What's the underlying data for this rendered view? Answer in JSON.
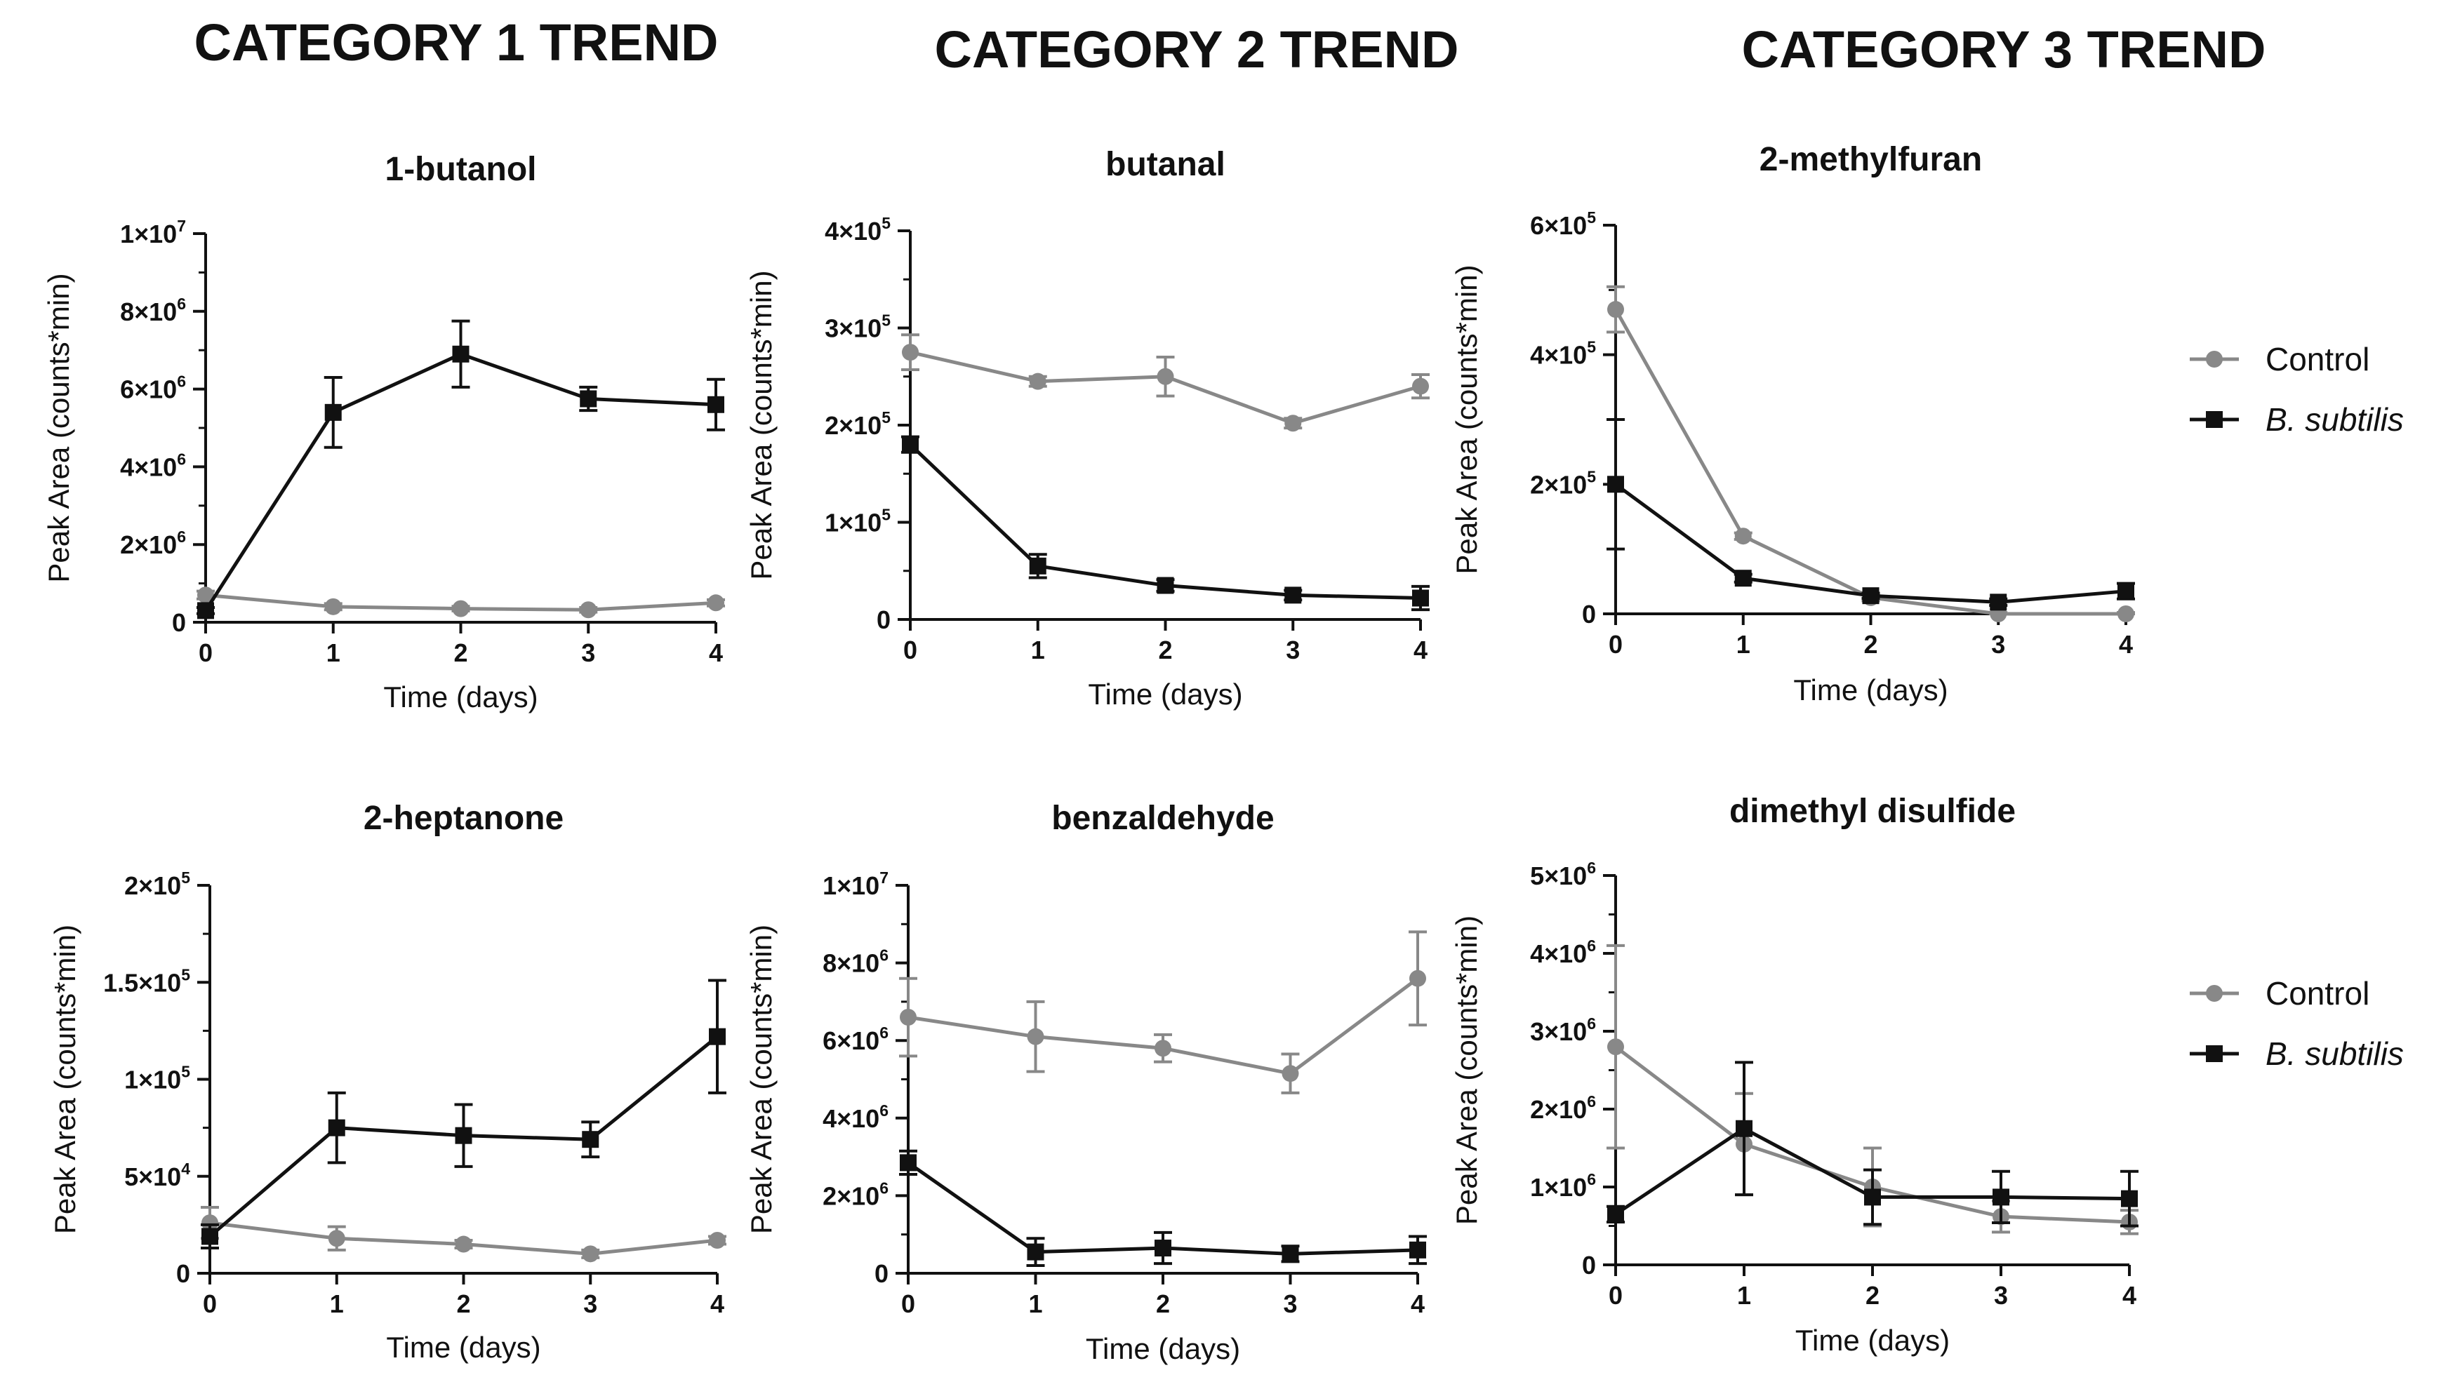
{
  "categories": [
    {
      "title": "CATEGORY 1 TREND"
    },
    {
      "title": "CATEGORY 2 TREND"
    },
    {
      "title": "CATEGORY 3 TREND"
    }
  ],
  "colors": {
    "control": "#888888",
    "subtilis": "#111111"
  },
  "legends": [
    {
      "items": [
        {
          "label": "Control",
          "series": "control"
        },
        {
          "label": "B. subtilis",
          "series": "subtilis",
          "italic": true
        }
      ]
    },
    {
      "items": [
        {
          "label": "Control",
          "series": "control"
        },
        {
          "label": "B. subtilis",
          "series": "subtilis",
          "italic": true
        }
      ]
    }
  ],
  "chart_data": [
    {
      "type": "line",
      "title": "1-butanol",
      "xlabel": "Time (days)",
      "ylabel": "Peak  Area (counts*min)",
      "x": [
        0,
        1,
        2,
        3,
        4
      ],
      "xticks": [
        "0",
        "1",
        "2",
        "3",
        "4"
      ],
      "xlim": [
        0,
        4
      ],
      "ylim": [
        0,
        10000000
      ],
      "yticks": [
        {
          "value": 0,
          "label": "0"
        },
        {
          "value": 2000000,
          "mant": "2",
          "exp": "6"
        },
        {
          "value": 4000000,
          "mant": "4",
          "exp": "6"
        },
        {
          "value": 6000000,
          "mant": "6",
          "exp": "6"
        },
        {
          "value": 8000000,
          "mant": "8",
          "exp": "6"
        },
        {
          "value": 10000000,
          "mant": "1",
          "exp": "7"
        }
      ],
      "series": [
        {
          "name": "Control",
          "key": "control",
          "values": [
            700000,
            400000,
            350000,
            320000,
            500000
          ],
          "errors": [
            100000,
            80000,
            60000,
            60000,
            80000
          ]
        },
        {
          "name": "B. subtilis",
          "key": "subtilis",
          "values": [
            300000,
            5400000,
            6900000,
            5750000,
            5600000
          ],
          "errors": [
            80000,
            900000,
            850000,
            300000,
            650000
          ]
        }
      ]
    },
    {
      "type": "line",
      "title": "butanal",
      "xlabel": "Time (days)",
      "ylabel": "Peak  Area (counts*min)",
      "x": [
        0,
        1,
        2,
        3,
        4
      ],
      "xticks": [
        "0",
        "1",
        "2",
        "3",
        "4"
      ],
      "xlim": [
        0,
        4
      ],
      "ylim": [
        0,
        400000
      ],
      "yticks": [
        {
          "value": 0,
          "label": "0"
        },
        {
          "value": 100000,
          "mant": "1",
          "exp": "5"
        },
        {
          "value": 200000,
          "mant": "2",
          "exp": "5"
        },
        {
          "value": 300000,
          "mant": "3",
          "exp": "5"
        },
        {
          "value": 400000,
          "mant": "4",
          "exp": "5"
        }
      ],
      "series": [
        {
          "name": "Control",
          "key": "control",
          "values": [
            275000,
            245000,
            250000,
            202000,
            240000
          ],
          "errors": [
            18000,
            5000,
            20000,
            5000,
            12000
          ]
        },
        {
          "name": "B. subtilis",
          "key": "subtilis",
          "values": [
            180000,
            55000,
            35000,
            25000,
            22000
          ],
          "errors": [
            8000,
            12000,
            6000,
            5000,
            12000
          ]
        }
      ]
    },
    {
      "type": "line",
      "title": "2-methylfuran",
      "xlabel": "Time (days)",
      "ylabel": "Peak  Area (counts*min)",
      "x": [
        0,
        1,
        2,
        3,
        4
      ],
      "xticks": [
        "0",
        "1",
        "2",
        "3",
        "4"
      ],
      "xlim": [
        0,
        4
      ],
      "ylim": [
        0,
        600000
      ],
      "yticks": [
        {
          "value": 0,
          "label": "0"
        },
        {
          "value": 200000,
          "mant": "2",
          "exp": "5"
        },
        {
          "value": 400000,
          "mant": "4",
          "exp": "5"
        },
        {
          "value": 600000,
          "mant": "6",
          "exp": "5"
        }
      ],
      "series": [
        {
          "name": "Control",
          "key": "control",
          "values": [
            470000,
            120000,
            25000,
            0,
            0
          ],
          "errors": [
            35000,
            5000,
            5000,
            2000,
            2000
          ]
        },
        {
          "name": "B. subtilis",
          "key": "subtilis",
          "values": [
            200000,
            55000,
            28000,
            18000,
            35000
          ],
          "errors": [
            100000,
            6000,
            4000,
            5000,
            12000
          ]
        }
      ]
    },
    {
      "type": "line",
      "title": "2-heptanone",
      "xlabel": "Time (days)",
      "ylabel": "Peak  Area (counts*min)",
      "x": [
        0,
        1,
        2,
        3,
        4
      ],
      "xticks": [
        "0",
        "1",
        "2",
        "3",
        "4"
      ],
      "xlim": [
        0,
        4
      ],
      "ylim": [
        0,
        200000
      ],
      "yticks": [
        {
          "value": 0,
          "label": "0"
        },
        {
          "value": 50000,
          "mant": "5",
          "exp": "4"
        },
        {
          "value": 100000,
          "mant": "1",
          "exp": "5"
        },
        {
          "value": 150000,
          "mant": "1.5",
          "exp": "5"
        },
        {
          "value": 200000,
          "mant": "2",
          "exp": "5"
        }
      ],
      "series": [
        {
          "name": "Control",
          "key": "control",
          "values": [
            26000,
            18000,
            15000,
            10000,
            17000
          ],
          "errors": [
            8000,
            6000,
            2000,
            2000,
            2000
          ]
        },
        {
          "name": "B. subtilis",
          "key": "subtilis",
          "values": [
            19000,
            75000,
            71000,
            69000,
            122000
          ],
          "errors": [
            6000,
            18000,
            16000,
            9000,
            29000
          ]
        }
      ]
    },
    {
      "type": "line",
      "title": "benzaldehyde",
      "xlabel": "Time (days)",
      "ylabel": "Peak  Area (counts*min)",
      "x": [
        0,
        1,
        2,
        3,
        4
      ],
      "xticks": [
        "0",
        "1",
        "2",
        "3",
        "4"
      ],
      "xlim": [
        0,
        4
      ],
      "ylim": [
        0,
        10000000
      ],
      "yticks": [
        {
          "value": 0,
          "label": "0"
        },
        {
          "value": 2000000,
          "mant": "2",
          "exp": "6"
        },
        {
          "value": 4000000,
          "mant": "4",
          "exp": "6"
        },
        {
          "value": 6000000,
          "mant": "6",
          "exp": "6"
        },
        {
          "value": 8000000,
          "mant": "8",
          "exp": "6"
        },
        {
          "value": 10000000,
          "mant": "1",
          "exp": "7"
        }
      ],
      "series": [
        {
          "name": "Control",
          "key": "control",
          "values": [
            6600000,
            6100000,
            5800000,
            5150000,
            7600000
          ],
          "errors": [
            1000000,
            900000,
            350000,
            500000,
            1200000
          ]
        },
        {
          "name": "B. subtilis",
          "key": "subtilis",
          "values": [
            2850000,
            550000,
            650000,
            500000,
            600000
          ],
          "errors": [
            300000,
            350000,
            400000,
            200000,
            350000
          ]
        }
      ]
    },
    {
      "type": "line",
      "title": "dimethyl disulfide",
      "xlabel": "Time (days)",
      "ylabel": "Peak  Area (counts*min)",
      "x": [
        0,
        1,
        2,
        3,
        4
      ],
      "xticks": [
        "0",
        "1",
        "2",
        "3",
        "4"
      ],
      "xlim": [
        0,
        4
      ],
      "ylim": [
        0,
        5000000
      ],
      "yticks": [
        {
          "value": 0,
          "label": "0"
        },
        {
          "value": 1000000,
          "mant": "1",
          "exp": "6"
        },
        {
          "value": 2000000,
          "mant": "2",
          "exp": "6"
        },
        {
          "value": 3000000,
          "mant": "3",
          "exp": "6"
        },
        {
          "value": 4000000,
          "mant": "4",
          "exp": "6"
        },
        {
          "value": 5000000,
          "mant": "5",
          "exp": "6"
        }
      ],
      "series": [
        {
          "name": "Control",
          "key": "control",
          "values": [
            2800000,
            1550000,
            1000000,
            620000,
            550000
          ],
          "errors": [
            1300000,
            650000,
            500000,
            200000,
            150000
          ]
        },
        {
          "name": "B. subtilis",
          "key": "subtilis",
          "values": [
            650000,
            1750000,
            870000,
            870000,
            850000
          ],
          "errors": [
            100000,
            850000,
            350000,
            330000,
            350000
          ]
        }
      ]
    }
  ]
}
